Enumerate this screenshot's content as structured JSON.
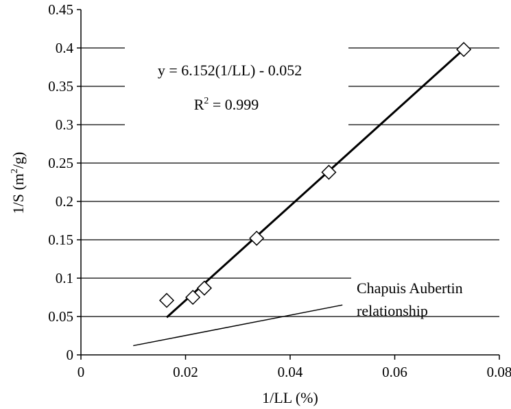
{
  "chart_data": {
    "type": "scatter",
    "xlabel": "1/LL (%)",
    "ylabel_prefix": "1/S (m",
    "ylabel_sup": "2",
    "ylabel_suffix": "/g)",
    "xlim": [
      0,
      0.08
    ],
    "ylim": [
      0,
      0.45
    ],
    "x_ticks": [
      0,
      0.02,
      0.04,
      0.06,
      0.08
    ],
    "x_tick_labels": [
      "0",
      "0.02",
      "0.04",
      "0.06",
      "0.08"
    ],
    "y_ticks": [
      0,
      0.05,
      0.1,
      0.15,
      0.2,
      0.25,
      0.3,
      0.35,
      0.4,
      0.45
    ],
    "y_tick_labels": [
      "0",
      "0.05",
      "0.1",
      "0.15",
      "0.2",
      "0.25",
      "0.3",
      "0.35",
      "0.4",
      "0.45"
    ],
    "grid": "horizontal",
    "series": [
      {
        "marker": "diamond-open",
        "x": [
          0.0164,
          0.0214,
          0.0236,
          0.0336,
          0.0474,
          0.0732
        ],
        "y": [
          0.071,
          0.075,
          0.087,
          0.152,
          0.238,
          0.398
        ]
      }
    ],
    "trendline": {
      "slope": 6.152,
      "intercept": -0.052,
      "x_range": [
        0.0164,
        0.0732
      ],
      "equation_label": "y = 6.152(1/LL) - 0.052",
      "r2_prefix": "R",
      "r2_sup": "2",
      "r2_suffix": " = 0.999"
    },
    "reference_line": {
      "points": [
        [
          0.01,
          0.012
        ],
        [
          0.05,
          0.065
        ]
      ],
      "label_line1": "Chapuis Aubertin",
      "label_line2": "relationship"
    }
  }
}
